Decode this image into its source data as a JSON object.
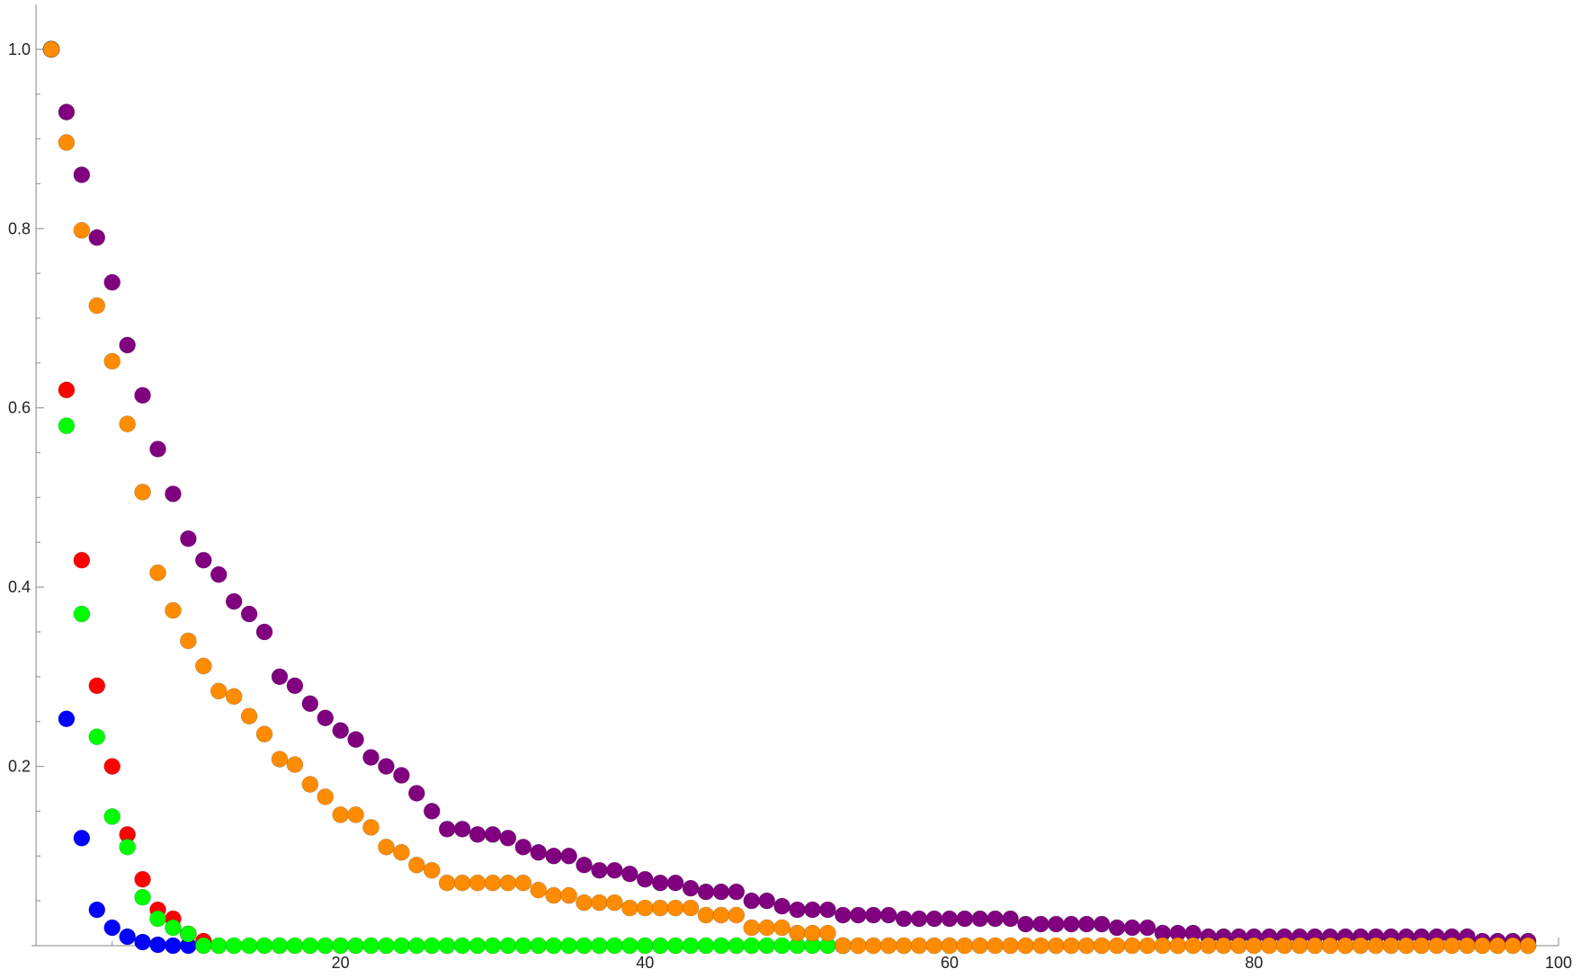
{
  "chart_data": {
    "type": "scatter",
    "title": "",
    "xlabel": "",
    "ylabel": "",
    "xlim": [
      -0.3,
      100
    ],
    "ylim": [
      0,
      1.05
    ],
    "grid": false,
    "legend": "none",
    "x_ticks": [
      {
        "value": 20,
        "label": "20"
      },
      {
        "value": 40,
        "label": "40"
      },
      {
        "value": 60,
        "label": "60"
      },
      {
        "value": 80,
        "label": "80"
      },
      {
        "value": 100,
        "label": "100"
      }
    ],
    "x_minor_step": 5,
    "y_ticks": [
      {
        "value": 0.2,
        "label": "0.2"
      },
      {
        "value": 0.4,
        "label": "0.4"
      },
      {
        "value": 0.6,
        "label": "0.6"
      },
      {
        "value": 0.8,
        "label": "0.8"
      },
      {
        "value": 1.0,
        "label": "1.0"
      }
    ],
    "y_minor_step": 0.05,
    "series": [
      {
        "color": "#0000ff",
        "x": [
          1,
          2,
          3,
          4,
          5,
          6,
          7,
          8,
          9,
          10
        ],
        "y": [
          1.0,
          0.253,
          0.12,
          0.04,
          0.02,
          0.01,
          0.004,
          0.001,
          0.0,
          0.0
        ]
      },
      {
        "color": "#ff0000",
        "x": [
          1,
          2,
          3,
          4,
          5,
          6,
          7,
          8,
          9,
          10,
          11
        ],
        "y": [
          1.0,
          0.62,
          0.43,
          0.29,
          0.2,
          0.124,
          0.074,
          0.04,
          0.03,
          0.013,
          0.005
        ]
      },
      {
        "color": "#00ff00",
        "x": [
          1,
          2,
          3,
          4,
          5,
          6,
          7,
          8,
          9,
          10,
          11,
          12,
          13,
          14,
          15,
          16,
          17,
          18,
          19,
          20,
          21,
          22,
          23,
          24,
          25,
          26,
          27,
          28,
          29,
          30,
          31,
          32,
          33,
          34,
          35,
          36,
          37,
          38,
          39,
          40,
          41,
          42,
          43,
          44,
          45,
          46,
          47,
          48,
          49,
          50,
          51,
          52,
          53
        ],
        "y": [
          1.0,
          0.58,
          0.37,
          0.233,
          0.144,
          0.11,
          0.054,
          0.03,
          0.02,
          0.013,
          0,
          0,
          0,
          0,
          0,
          0,
          0,
          0,
          0,
          0,
          0,
          0,
          0,
          0,
          0,
          0,
          0,
          0,
          0,
          0,
          0,
          0,
          0,
          0,
          0,
          0,
          0,
          0,
          0,
          0,
          0,
          0,
          0,
          0,
          0,
          0,
          0,
          0,
          0,
          0,
          0,
          0,
          0
        ]
      },
      {
        "color": "#800080",
        "x": [
          1,
          2,
          3,
          4,
          5,
          6,
          7,
          8,
          9,
          10,
          11,
          12,
          13,
          14,
          15,
          16,
          17,
          18,
          19,
          20,
          21,
          22,
          23,
          24,
          25,
          26,
          27,
          28,
          29,
          30,
          31,
          32,
          33,
          34,
          35,
          36,
          37,
          38,
          39,
          40,
          41,
          42,
          43,
          44,
          45,
          46,
          47,
          48,
          49,
          50,
          51,
          52,
          53,
          54,
          55,
          56,
          57,
          58,
          59,
          60,
          61,
          62,
          63,
          64,
          65,
          66,
          67,
          68,
          69,
          70,
          71,
          72,
          73,
          74,
          75,
          76,
          77,
          78,
          79,
          80,
          81,
          82,
          83,
          84,
          85,
          86,
          87,
          88,
          89,
          90,
          91,
          92,
          93,
          94,
          95,
          96,
          97,
          98
        ],
        "y": [
          1.0,
          0.93,
          0.86,
          0.79,
          0.74,
          0.67,
          0.614,
          0.554,
          0.504,
          0.454,
          0.43,
          0.414,
          0.384,
          0.37,
          0.35,
          0.3,
          0.29,
          0.27,
          0.254,
          0.24,
          0.23,
          0.21,
          0.2,
          0.19,
          0.17,
          0.15,
          0.13,
          0.13,
          0.124,
          0.124,
          0.12,
          0.11,
          0.104,
          0.1,
          0.1,
          0.09,
          0.084,
          0.084,
          0.08,
          0.074,
          0.07,
          0.07,
          0.064,
          0.06,
          0.06,
          0.06,
          0.05,
          0.05,
          0.044,
          0.04,
          0.04,
          0.04,
          0.034,
          0.034,
          0.034,
          0.034,
          0.03,
          0.03,
          0.03,
          0.03,
          0.03,
          0.03,
          0.03,
          0.03,
          0.024,
          0.024,
          0.024,
          0.024,
          0.024,
          0.024,
          0.02,
          0.02,
          0.02,
          0.014,
          0.014,
          0.014,
          0.01,
          0.01,
          0.01,
          0.01,
          0.01,
          0.01,
          0.01,
          0.01,
          0.01,
          0.01,
          0.01,
          0.01,
          0.01,
          0.01,
          0.01,
          0.01,
          0.01,
          0.01,
          0.005,
          0.005,
          0.005,
          0.005
        ]
      },
      {
        "color": "#ff8c00",
        "x": [
          1,
          2,
          3,
          4,
          5,
          6,
          7,
          8,
          9,
          10,
          11,
          12,
          13,
          14,
          15,
          16,
          17,
          18,
          19,
          20,
          21,
          22,
          23,
          24,
          25,
          26,
          27,
          28,
          29,
          30,
          31,
          32,
          33,
          34,
          35,
          36,
          37,
          38,
          39,
          40,
          41,
          42,
          43,
          44,
          45,
          46,
          47,
          48,
          49,
          50,
          51,
          52,
          53,
          54,
          55,
          56,
          57,
          58,
          59,
          60,
          61,
          62,
          63,
          64,
          65,
          66,
          67,
          68,
          69,
          70,
          71,
          72,
          73,
          74,
          75,
          76,
          77,
          78,
          79,
          80,
          81,
          82,
          83,
          84,
          85,
          86,
          87,
          88,
          89,
          90,
          91,
          92,
          93,
          94,
          95,
          96,
          97,
          98
        ],
        "y": [
          1.0,
          0.896,
          0.798,
          0.714,
          0.652,
          0.582,
          0.506,
          0.416,
          0.374,
          0.34,
          0.312,
          0.284,
          0.278,
          0.256,
          0.236,
          0.208,
          0.202,
          0.18,
          0.166,
          0.146,
          0.146,
          0.132,
          0.11,
          0.104,
          0.09,
          0.084,
          0.07,
          0.07,
          0.07,
          0.07,
          0.07,
          0.07,
          0.062,
          0.056,
          0.056,
          0.048,
          0.048,
          0.048,
          0.042,
          0.042,
          0.042,
          0.042,
          0.042,
          0.034,
          0.034,
          0.034,
          0.02,
          0.02,
          0.02,
          0.014,
          0.014,
          0.014,
          0.0,
          0,
          0,
          0,
          0,
          0,
          0,
          0,
          0,
          0,
          0,
          0,
          0,
          0,
          0,
          0,
          0,
          0,
          0,
          0,
          0,
          0,
          0,
          0,
          0,
          0,
          0,
          0,
          0,
          0,
          0,
          0,
          0,
          0,
          0,
          0,
          0,
          0,
          0,
          0,
          0,
          0,
          0,
          0,
          0,
          0
        ]
      }
    ]
  }
}
